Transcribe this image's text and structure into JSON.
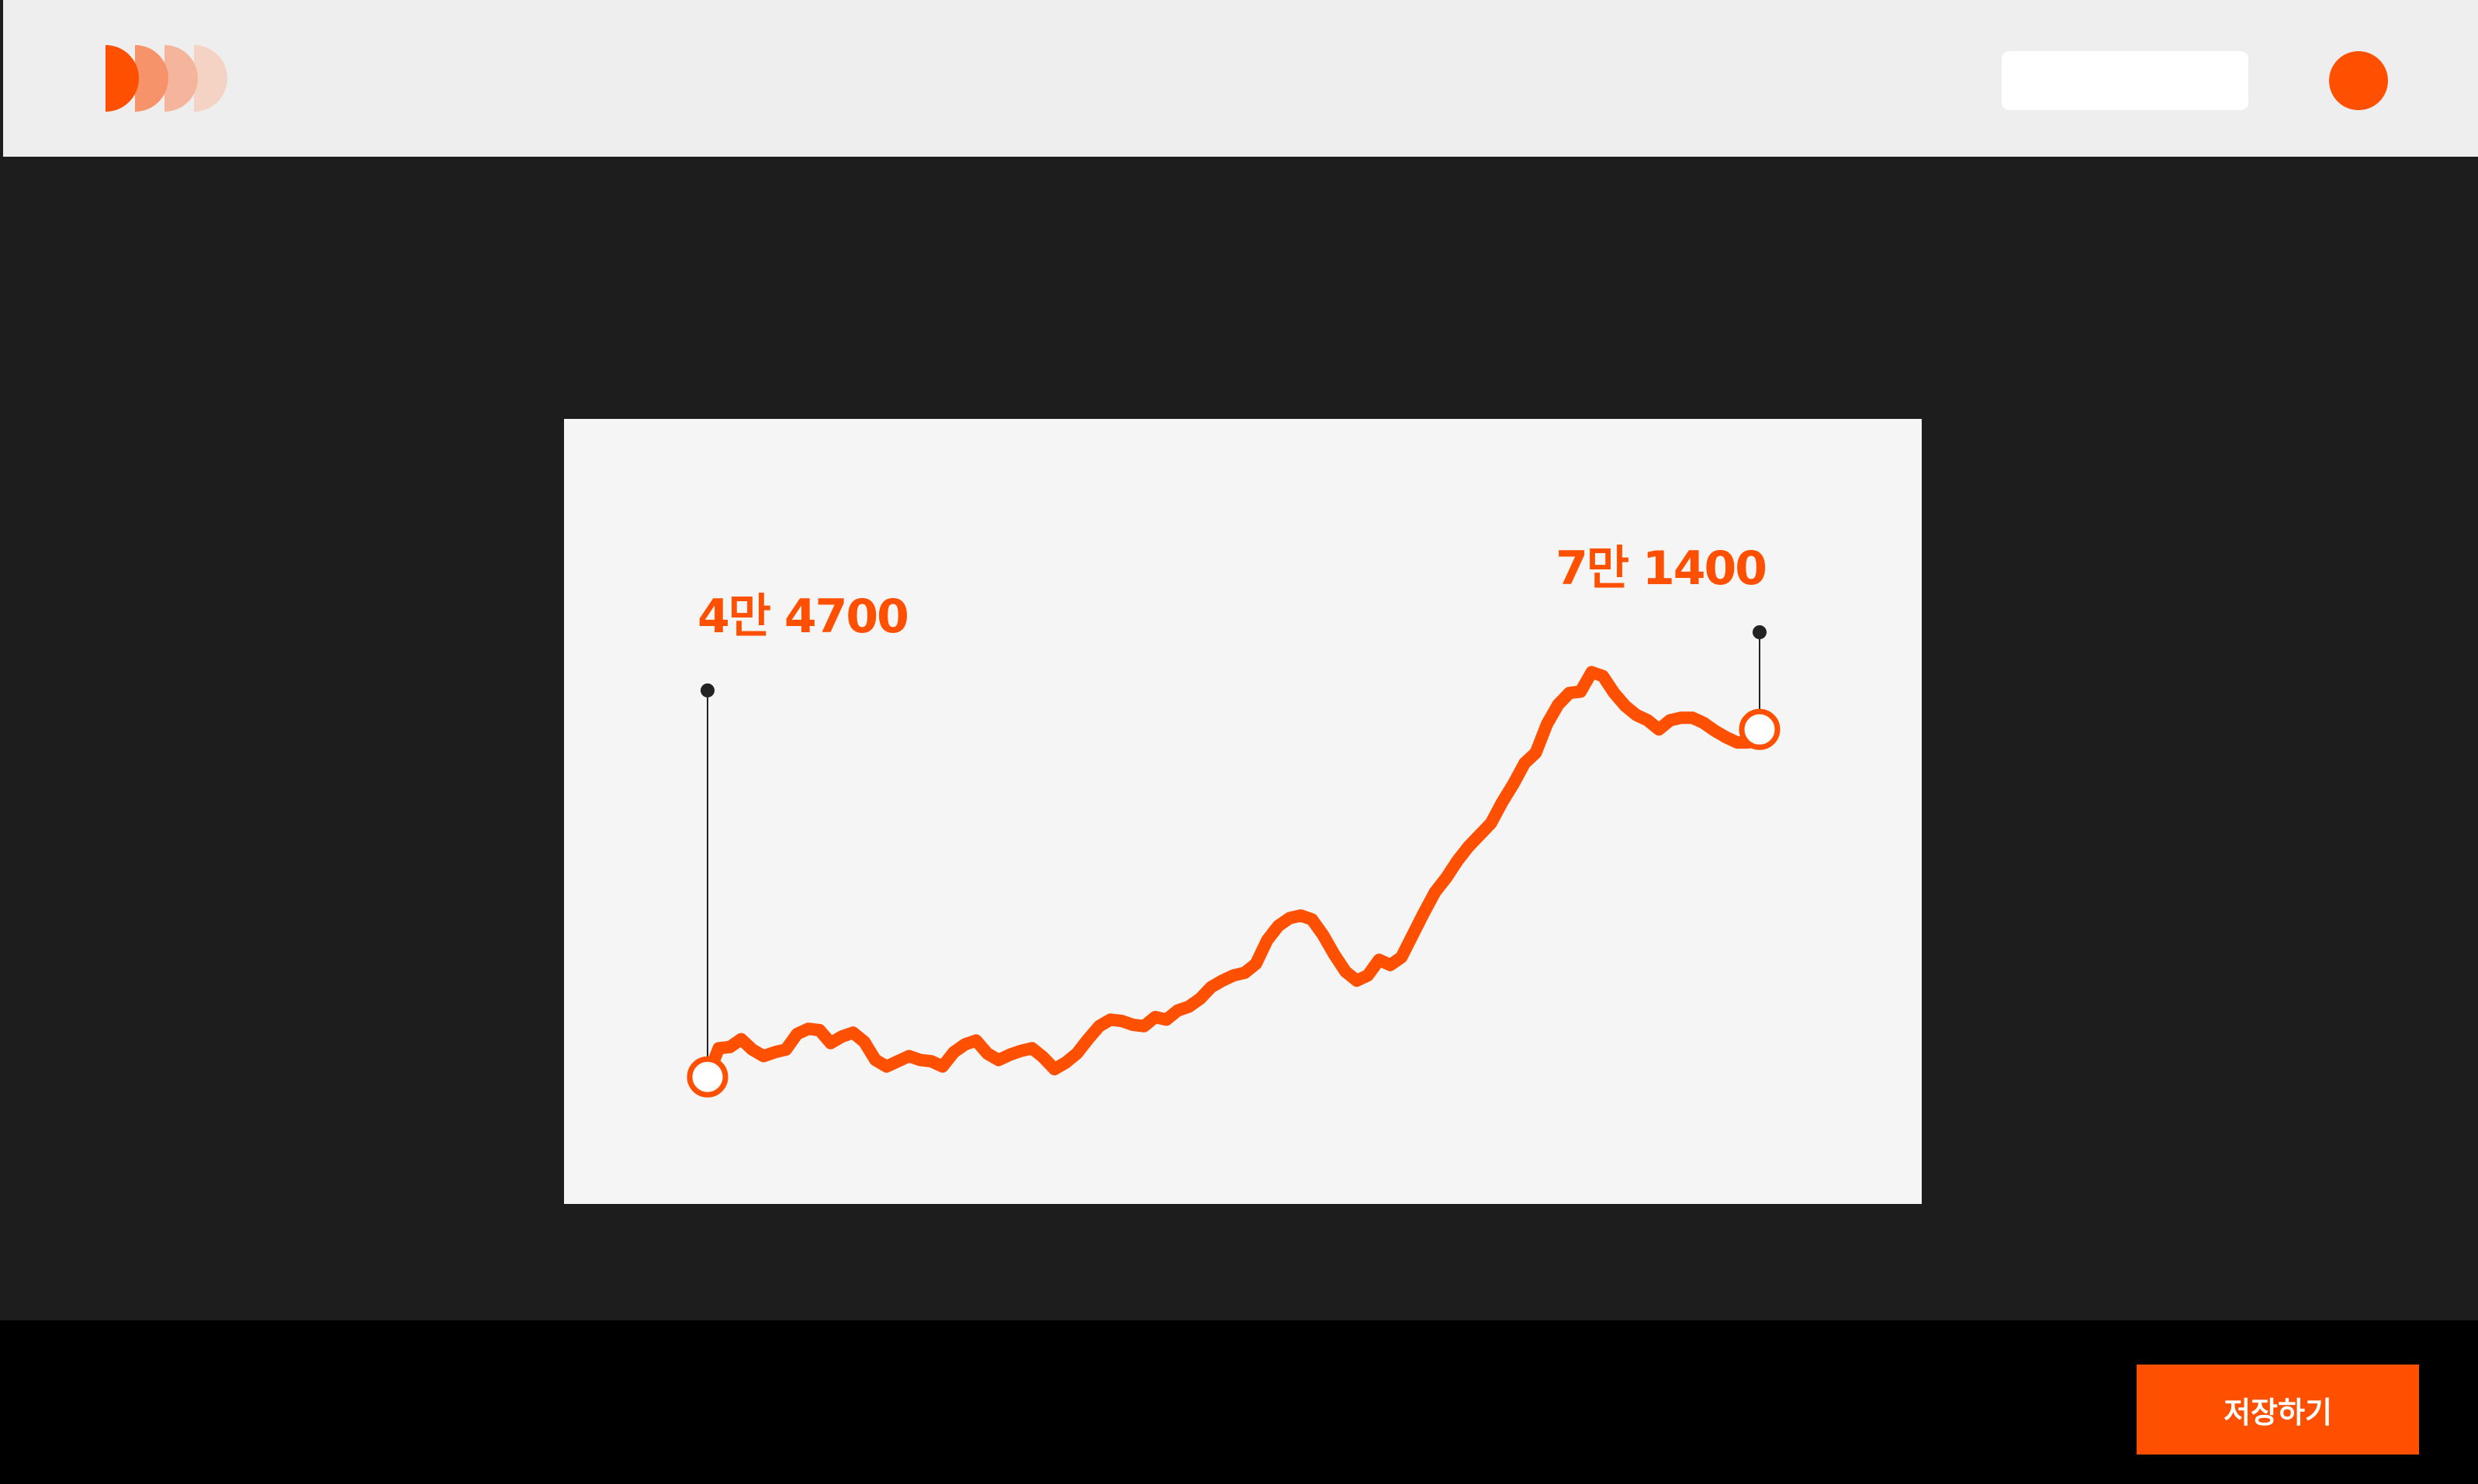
{
  "colors": {
    "accent": "#ff4f00",
    "logo_tints": [
      "#ff4f00",
      "#f7936a",
      "#f4b59c",
      "#f4d2c4"
    ],
    "header_bg": "#efeeee",
    "canvas_bg": "#1d1d1d",
    "card_bg": "#f5f5f5",
    "footer_bg": "#000000",
    "leader_line": "#222222"
  },
  "header": {
    "logo_icon": "four-half-circles-logo",
    "search_placeholder": "",
    "avatar_icon": "profile-dot"
  },
  "footer": {
    "save_label": "저장하기"
  },
  "chart_data": {
    "type": "line",
    "title": "",
    "xlabel": "",
    "ylabel": "",
    "ylim": [
      44000,
      80000
    ],
    "grid": false,
    "legend": "none",
    "start": {
      "value": 44700,
      "label": "4만 4700"
    },
    "end": {
      "value": 71400,
      "label": "7만 1400"
    },
    "series": [
      {
        "values": [
          44700,
          46900,
          47000,
          47600,
          46800,
          46300,
          46600,
          46800,
          48000,
          48400,
          48300,
          47300,
          47800,
          48100,
          47400,
          46000,
          45500,
          45900,
          46300,
          46000,
          45900,
          45500,
          46600,
          47200,
          47500,
          46500,
          46000,
          46400,
          46700,
          46900,
          46200,
          45300,
          45800,
          46500,
          47600,
          48600,
          49100,
          49000,
          48700,
          48600,
          49300,
          49100,
          49800,
          50100,
          50700,
          51600,
          52100,
          52500,
          52700,
          53400,
          55200,
          56300,
          56900,
          57100,
          56800,
          55600,
          54100,
          52800,
          52100,
          52500,
          53700,
          53300,
          53900,
          55600,
          57300,
          58900,
          60000,
          61300,
          62400,
          63300,
          64200,
          65800,
          67200,
          68800,
          69600,
          71800,
          73300,
          74200,
          74300,
          75800,
          75500,
          74200,
          73200,
          72500,
          72100,
          71400,
          72100,
          72300,
          72300,
          71900,
          71300,
          70800,
          70400,
          70400,
          71400
        ]
      }
    ]
  }
}
